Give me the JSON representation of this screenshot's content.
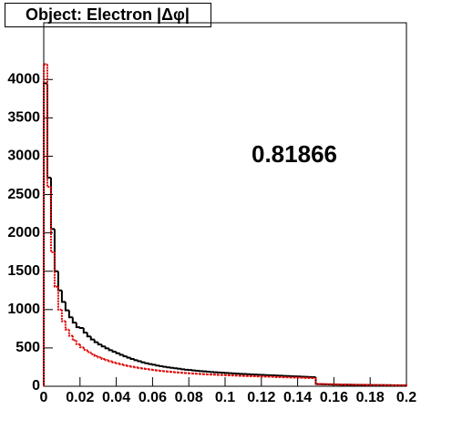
{
  "chart_data": {
    "type": "histogram",
    "title": "Object: Electron |Δφ|",
    "annotation": "0.81866",
    "bins": [
      0,
      0.002,
      0.004,
      0.006,
      0.008,
      0.01,
      0.012,
      0.014,
      0.016,
      0.018,
      0.02,
      0.022,
      0.024,
      0.026,
      0.028,
      0.03,
      0.032,
      0.034,
      0.036,
      0.038,
      0.04,
      0.042,
      0.044,
      0.046,
      0.048,
      0.05,
      0.052,
      0.054,
      0.056,
      0.058,
      0.06,
      0.062,
      0.064,
      0.066,
      0.068,
      0.07,
      0.072,
      0.074,
      0.076,
      0.078,
      0.08,
      0.082,
      0.084,
      0.086,
      0.088,
      0.09,
      0.092,
      0.094,
      0.096,
      0.098,
      0.1,
      0.102,
      0.104,
      0.106,
      0.108,
      0.11,
      0.112,
      0.114,
      0.116,
      0.118,
      0.12,
      0.122,
      0.124,
      0.126,
      0.128,
      0.13,
      0.132,
      0.134,
      0.136,
      0.138,
      0.14,
      0.142,
      0.144,
      0.146,
      0.148,
      0.15,
      0.152,
      0.154,
      0.156,
      0.158,
      0.16,
      0.162,
      0.164,
      0.166,
      0.168,
      0.17,
      0.172,
      0.174,
      0.176,
      0.178,
      0.18,
      0.182,
      0.184,
      0.186,
      0.188,
      0.19,
      0.192,
      0.194,
      0.196,
      0.198,
      0.2
    ],
    "series": [
      {
        "color": "#000000",
        "dashed": false,
        "values": [
          3950,
          2720,
          2050,
          1500,
          1250,
          1100,
          990,
          900,
          830,
          770,
          760,
          700,
          650,
          610,
          575,
          545,
          520,
          495,
          470,
          450,
          430,
          410,
          390,
          372,
          356,
          340,
          326,
          312,
          300,
          290,
          280,
          270,
          262,
          254,
          246,
          240,
          234,
          228,
          222,
          216,
          212,
          207,
          202,
          198,
          194,
          190,
          186,
          183,
          180,
          177,
          174,
          171,
          168,
          165,
          162,
          160,
          158,
          155,
          153,
          150,
          148,
          146,
          144,
          142,
          140,
          138,
          135,
          133,
          131,
          129,
          127,
          125,
          123,
          121,
          119,
          28,
          26,
          25,
          24,
          23,
          22,
          21,
          20,
          20,
          19,
          18,
          18,
          17,
          16,
          16,
          15,
          15,
          14,
          14,
          13,
          13,
          12,
          12,
          11,
          11
        ]
      },
      {
        "color": "#e00000",
        "dashed": true,
        "values": [
          4200,
          2600,
          1750,
          1300,
          1000,
          850,
          740,
          660,
          600,
          550,
          510,
          475,
          445,
          418,
          395,
          375,
          357,
          340,
          325,
          311,
          298,
          286,
          275,
          265,
          256,
          247,
          239,
          232,
          225,
          218,
          212,
          206,
          201,
          196,
          191,
          187,
          183,
          179,
          175,
          172,
          169,
          166,
          163,
          160,
          158,
          155,
          153,
          151,
          149,
          147,
          145,
          143,
          141,
          139,
          137,
          135,
          134,
          132,
          130,
          129,
          127,
          126,
          124,
          123,
          121,
          120,
          118,
          117,
          115,
          114,
          113,
          111,
          110,
          109,
          107,
          30,
          29,
          28,
          27,
          26,
          25,
          24,
          23,
          22,
          21,
          21,
          20,
          19,
          19,
          18,
          17,
          17,
          16,
          16,
          15,
          15,
          14,
          14,
          13,
          13
        ]
      }
    ],
    "xlim": [
      0,
      0.2
    ],
    "ylim": [
      0,
      4740
    ],
    "xticks": [
      0,
      0.02,
      0.04,
      0.06,
      0.08,
      0.1,
      0.12,
      0.14,
      0.16,
      0.18,
      0.2
    ],
    "yticks": [
      0,
      500,
      1000,
      1500,
      2000,
      2500,
      3000,
      3500,
      4000
    ]
  }
}
